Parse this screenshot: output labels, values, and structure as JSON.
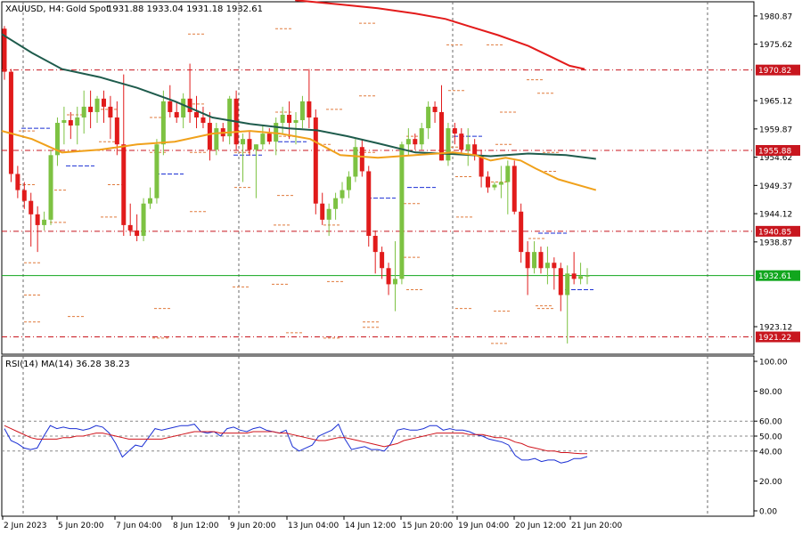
{
  "header": {
    "symbol": "XAUUSD, H4:",
    "description": "Gold Spot",
    "ohlc": "1931.88 1933.04 1931.18 1932.61"
  },
  "rsi_header": "RSI(14) MA(14) 36.28 38.23",
  "colors": {
    "bull": "#7dc242",
    "bear": "#e11b1b",
    "ma_red": "#e31b1b",
    "ma_green": "#1e5b4c",
    "ma_orange": "#f0a11b",
    "level_line": "#c8161e",
    "current_line": "#11a61e",
    "rsi_line": "#1a2fd4",
    "rsi_ma": "#d0141c",
    "pivot_dash": "#e07a3c",
    "pivot_blue": "#1a2fd4"
  },
  "chart_data": [
    {
      "type": "candlestick",
      "title": "XAUUSD, H4: Gold Spot",
      "ylim": [
        1918.0,
        1983.5
      ],
      "price_ticks": [
        "1980.87",
        "1975.62",
        "1965.12",
        "1959.87",
        "1954.62",
        "1949.37",
        "1944.12",
        "1938.87",
        "1923.12"
      ],
      "x_tick_labels": [
        "2 Jun 2023",
        "5 Jun 20:00",
        "7 Jun 04:00",
        "8 Jun 12:00",
        "9 Jun 20:00",
        "13 Jun 04:00",
        "14 Jun 12:00",
        "15 Jun 20:00",
        "19 Jun 04:00",
        "20 Jun 12:00",
        "21 Jun 20:00"
      ],
      "horizontal_levels": [
        {
          "label": "1970.82",
          "value": 1970.82
        },
        {
          "label": "1955.88",
          "value": 1955.88
        },
        {
          "label": "1940.85",
          "value": 1940.85
        },
        {
          "label": "1921.22",
          "value": 1921.22
        }
      ],
      "current_price": {
        "label": "1932.61",
        "value": 1932.61
      },
      "candles": [
        {
          "o": 1978.5,
          "h": 1979.0,
          "l": 1969.0,
          "c": 1970.5
        },
        {
          "o": 1970.5,
          "h": 1971.0,
          "l": 1950.0,
          "c": 1951.5
        },
        {
          "o": 1951.5,
          "h": 1953.0,
          "l": 1947.0,
          "c": 1948.5
        },
        {
          "o": 1948.5,
          "h": 1950.0,
          "l": 1945.0,
          "c": 1946.5
        },
        {
          "o": 1946.5,
          "h": 1948.0,
          "l": 1938.0,
          "c": 1944.0
        },
        {
          "o": 1944.0,
          "h": 1945.5,
          "l": 1937.0,
          "c": 1942.0
        },
        {
          "o": 1942.0,
          "h": 1944.5,
          "l": 1941.0,
          "c": 1943.0
        },
        {
          "o": 1943.0,
          "h": 1956.0,
          "l": 1942.0,
          "c": 1955.0
        },
        {
          "o": 1955.0,
          "h": 1962.0,
          "l": 1953.0,
          "c": 1961.0
        },
        {
          "o": 1961.0,
          "h": 1964.0,
          "l": 1957.0,
          "c": 1961.5
        },
        {
          "o": 1961.5,
          "h": 1963.0,
          "l": 1958.0,
          "c": 1960.5
        },
        {
          "o": 1960.5,
          "h": 1964.0,
          "l": 1957.0,
          "c": 1962.0
        },
        {
          "o": 1962.0,
          "h": 1967.0,
          "l": 1959.0,
          "c": 1964.0
        },
        {
          "o": 1964.0,
          "h": 1967.0,
          "l": 1960.0,
          "c": 1963.0
        },
        {
          "o": 1963.0,
          "h": 1966.0,
          "l": 1961.0,
          "c": 1965.5
        },
        {
          "o": 1965.5,
          "h": 1967.0,
          "l": 1961.0,
          "c": 1964.0
        },
        {
          "o": 1964.0,
          "h": 1966.0,
          "l": 1958.0,
          "c": 1962.0
        },
        {
          "o": 1962.0,
          "h": 1965.0,
          "l": 1955.0,
          "c": 1957.0
        },
        {
          "o": 1957.0,
          "h": 1970.0,
          "l": 1940.0,
          "c": 1942.0
        },
        {
          "o": 1942.0,
          "h": 1946.0,
          "l": 1940.0,
          "c": 1941.0
        },
        {
          "o": 1941.0,
          "h": 1944.0,
          "l": 1939.0,
          "c": 1940.0
        },
        {
          "o": 1940.0,
          "h": 1947.0,
          "l": 1939.0,
          "c": 1946.0
        },
        {
          "o": 1946.0,
          "h": 1949.0,
          "l": 1945.0,
          "c": 1947.0
        },
        {
          "o": 1947.0,
          "h": 1958.0,
          "l": 1946.0,
          "c": 1957.0
        },
        {
          "o": 1957.0,
          "h": 1967.0,
          "l": 1955.0,
          "c": 1965.0
        },
        {
          "o": 1965.0,
          "h": 1968.0,
          "l": 1962.0,
          "c": 1963.0
        },
        {
          "o": 1963.0,
          "h": 1965.0,
          "l": 1961.0,
          "c": 1962.0
        },
        {
          "o": 1962.0,
          "h": 1966.5,
          "l": 1960.0,
          "c": 1965.5
        },
        {
          "o": 1965.5,
          "h": 1972.0,
          "l": 1961.0,
          "c": 1963.0
        },
        {
          "o": 1963.0,
          "h": 1966.0,
          "l": 1960.0,
          "c": 1962.0
        },
        {
          "o": 1962.0,
          "h": 1964.0,
          "l": 1960.0,
          "c": 1961.0
        },
        {
          "o": 1961.0,
          "h": 1963.0,
          "l": 1954.0,
          "c": 1956.0
        },
        {
          "o": 1956.0,
          "h": 1961.0,
          "l": 1955.0,
          "c": 1960.0
        },
        {
          "o": 1960.0,
          "h": 1961.0,
          "l": 1957.5,
          "c": 1958.5
        },
        {
          "o": 1958.5,
          "h": 1966.0,
          "l": 1957.0,
          "c": 1965.5
        },
        {
          "o": 1965.5,
          "h": 1967.0,
          "l": 1956.0,
          "c": 1957.0
        },
        {
          "o": 1957.0,
          "h": 1959.0,
          "l": 1950.0,
          "c": 1958.0
        },
        {
          "o": 1958.0,
          "h": 1959.5,
          "l": 1955.0,
          "c": 1956.0
        },
        {
          "o": 1956.0,
          "h": 1957.0,
          "l": 1947.0,
          "c": 1957.0
        },
        {
          "o": 1957.0,
          "h": 1960.5,
          "l": 1956.0,
          "c": 1959.0
        },
        {
          "o": 1959.0,
          "h": 1960.0,
          "l": 1957.0,
          "c": 1957.5
        },
        {
          "o": 1957.5,
          "h": 1962.0,
          "l": 1955.0,
          "c": 1961.0
        },
        {
          "o": 1961.0,
          "h": 1964.0,
          "l": 1959.0,
          "c": 1962.5
        },
        {
          "o": 1962.5,
          "h": 1965.0,
          "l": 1958.0,
          "c": 1961.0
        },
        {
          "o": 1961.0,
          "h": 1963.0,
          "l": 1957.0,
          "c": 1961.5
        },
        {
          "o": 1961.5,
          "h": 1966.0,
          "l": 1960.0,
          "c": 1965.0
        },
        {
          "o": 1965.0,
          "h": 1971.0,
          "l": 1960.0,
          "c": 1962.0
        },
        {
          "o": 1962.0,
          "h": 1963.5,
          "l": 1944.0,
          "c": 1946.0
        },
        {
          "o": 1946.0,
          "h": 1948.0,
          "l": 1942.0,
          "c": 1943.0
        },
        {
          "o": 1943.0,
          "h": 1946.0,
          "l": 1940.0,
          "c": 1945.0
        },
        {
          "o": 1945.0,
          "h": 1948.0,
          "l": 1943.0,
          "c": 1947.0
        },
        {
          "o": 1947.0,
          "h": 1950.0,
          "l": 1946.0,
          "c": 1948.5
        },
        {
          "o": 1948.5,
          "h": 1952.0,
          "l": 1947.0,
          "c": 1951.0
        },
        {
          "o": 1951.0,
          "h": 1958.0,
          "l": 1950.0,
          "c": 1956.5
        },
        {
          "o": 1956.5,
          "h": 1958.0,
          "l": 1951.0,
          "c": 1952.0
        },
        {
          "o": 1952.0,
          "h": 1953.0,
          "l": 1938.0,
          "c": 1940.0
        },
        {
          "o": 1940.0,
          "h": 1941.0,
          "l": 1933.0,
          "c": 1937.0
        },
        {
          "o": 1937.0,
          "h": 1938.0,
          "l": 1932.0,
          "c": 1934.0
        },
        {
          "o": 1934.0,
          "h": 1935.0,
          "l": 1929.0,
          "c": 1931.0
        },
        {
          "o": 1931.0,
          "h": 1939.0,
          "l": 1926.0,
          "c": 1932.0
        },
        {
          "o": 1932.0,
          "h": 1957.5,
          "l": 1931.0,
          "c": 1957.0
        },
        {
          "o": 1957.0,
          "h": 1960.0,
          "l": 1955.0,
          "c": 1958.0
        },
        {
          "o": 1958.0,
          "h": 1959.0,
          "l": 1956.0,
          "c": 1957.0
        },
        {
          "o": 1957.0,
          "h": 1961.0,
          "l": 1956.0,
          "c": 1960.0
        },
        {
          "o": 1960.0,
          "h": 1965.0,
          "l": 1958.0,
          "c": 1964.0
        },
        {
          "o": 1964.0,
          "h": 1965.0,
          "l": 1961.0,
          "c": 1963.0
        },
        {
          "o": 1963.0,
          "h": 1968.0,
          "l": 1954.0,
          "c": 1954.0
        },
        {
          "o": 1954.0,
          "h": 1961.0,
          "l": 1953.0,
          "c": 1960.0
        },
        {
          "o": 1960.0,
          "h": 1961.0,
          "l": 1957.0,
          "c": 1959.0
        },
        {
          "o": 1959.0,
          "h": 1960.0,
          "l": 1955.0,
          "c": 1956.0
        },
        {
          "o": 1956.0,
          "h": 1960.0,
          "l": 1953.0,
          "c": 1957.0
        },
        {
          "o": 1957.0,
          "h": 1958.0,
          "l": 1954.0,
          "c": 1955.0
        },
        {
          "o": 1955.0,
          "h": 1956.0,
          "l": 1949.0,
          "c": 1951.0
        },
        {
          "o": 1951.0,
          "h": 1952.0,
          "l": 1948.0,
          "c": 1949.0
        },
        {
          "o": 1949.0,
          "h": 1950.0,
          "l": 1948.5,
          "c": 1949.5
        },
        {
          "o": 1949.5,
          "h": 1953.0,
          "l": 1947.0,
          "c": 1950.0
        },
        {
          "o": 1950.0,
          "h": 1954.0,
          "l": 1944.0,
          "c": 1953.0
        },
        {
          "o": 1953.0,
          "h": 1954.0,
          "l": 1944.0,
          "c": 1944.5
        },
        {
          "o": 1944.5,
          "h": 1946.0,
          "l": 1935.0,
          "c": 1937.0
        },
        {
          "o": 1937.0,
          "h": 1939.0,
          "l": 1929.0,
          "c": 1934.0
        },
        {
          "o": 1934.0,
          "h": 1939.0,
          "l": 1933.0,
          "c": 1937.0
        },
        {
          "o": 1937.0,
          "h": 1938.0,
          "l": 1933.0,
          "c": 1934.0
        },
        {
          "o": 1934.0,
          "h": 1938.0,
          "l": 1931.0,
          "c": 1935.0
        },
        {
          "o": 1935.0,
          "h": 1936.0,
          "l": 1930.0,
          "c": 1934.0
        },
        {
          "o": 1934.0,
          "h": 1935.0,
          "l": 1926.0,
          "c": 1929.0
        },
        {
          "o": 1929.0,
          "h": 1934.5,
          "l": 1920.0,
          "c": 1933.0
        },
        {
          "o": 1933.0,
          "h": 1937.0,
          "l": 1931.0,
          "c": 1932.0
        },
        {
          "o": 1932.0,
          "h": 1935.0,
          "l": 1931.0,
          "c": 1932.5
        },
        {
          "o": 1932.5,
          "h": 1934.0,
          "l": 1931.0,
          "c": 1932.6
        }
      ],
      "moving_averages": [
        {
          "color": "ma_red",
          "points": [
            [
              0.39,
              1983.8
            ],
            [
              0.45,
              1983.0
            ],
            [
              0.5,
              1982.3
            ],
            [
              0.55,
              1981.3
            ],
            [
              0.59,
              1980.3
            ],
            [
              0.62,
              1979.0
            ],
            [
              0.66,
              1977.3
            ],
            [
              0.7,
              1975.3
            ],
            [
              0.73,
              1973.3
            ],
            [
              0.755,
              1971.6
            ],
            [
              0.775,
              1971.0
            ]
          ]
        },
        {
          "color": "ma_green",
          "points": [
            [
              0.0,
              1977.5
            ],
            [
              0.04,
              1974.0
            ],
            [
              0.08,
              1971.0
            ],
            [
              0.13,
              1969.5
            ],
            [
              0.18,
              1967.5
            ],
            [
              0.23,
              1965.0
            ],
            [
              0.28,
              1962.0
            ],
            [
              0.33,
              1960.8
            ],
            [
              0.38,
              1960.0
            ],
            [
              0.42,
              1959.6
            ],
            [
              0.46,
              1958.5
            ],
            [
              0.5,
              1957.2
            ],
            [
              0.55,
              1955.5
            ],
            [
              0.6,
              1955.2
            ],
            [
              0.65,
              1954.8
            ],
            [
              0.7,
              1955.3
            ],
            [
              0.75,
              1955.0
            ],
            [
              0.79,
              1954.3
            ]
          ]
        },
        {
          "color": "ma_orange",
          "points": [
            [
              0.0,
              1959.5
            ],
            [
              0.04,
              1958.0
            ],
            [
              0.08,
              1955.5
            ],
            [
              0.13,
              1956.0
            ],
            [
              0.18,
              1957.0
            ],
            [
              0.23,
              1957.5
            ],
            [
              0.28,
              1959.0
            ],
            [
              0.33,
              1959.5
            ],
            [
              0.37,
              1959.0
            ],
            [
              0.41,
              1958.0
            ],
            [
              0.45,
              1955.0
            ],
            [
              0.5,
              1954.5
            ],
            [
              0.55,
              1955.0
            ],
            [
              0.6,
              1955.5
            ],
            [
              0.63,
              1955.0
            ],
            [
              0.65,
              1954.0
            ],
            [
              0.67,
              1954.5
            ],
            [
              0.69,
              1954.0
            ],
            [
              0.71,
              1952.5
            ],
            [
              0.74,
              1950.5
            ],
            [
              0.79,
              1948.5
            ]
          ]
        }
      ]
    },
    {
      "type": "line",
      "title": "RSI(14) MA(14) 36.28 38.23",
      "ylim": [
        0,
        100
      ],
      "y_ticks": [
        "100.00",
        "80.00",
        "60.00",
        "50.00",
        "40.00",
        "20.00",
        "0.00"
      ],
      "levels": [
        60,
        50,
        40
      ],
      "series": [
        {
          "name": "RSI(14)",
          "values": [
            55,
            47,
            45,
            42,
            41,
            42,
            50,
            57,
            55,
            56,
            55,
            55,
            54,
            55,
            57,
            56,
            52,
            45,
            36,
            40,
            44,
            43,
            49,
            55,
            54,
            55,
            56,
            57,
            57,
            58,
            53,
            52,
            53,
            50,
            55,
            56,
            54,
            53,
            55,
            56,
            54,
            53,
            52,
            54,
            43,
            40,
            42,
            44,
            50,
            52,
            54,
            58,
            48,
            41,
            42,
            43,
            41,
            41,
            40,
            45,
            54,
            55,
            54,
            54,
            55,
            57,
            57,
            54,
            55,
            54,
            54,
            53,
            51,
            50,
            48,
            47,
            46,
            44,
            37,
            34,
            34,
            35,
            33,
            34,
            34,
            32,
            33,
            35,
            35,
            36.28
          ]
        },
        {
          "name": "MA(14)",
          "values": [
            57,
            55,
            53,
            51,
            49,
            48,
            48,
            48,
            48,
            49,
            49,
            50,
            50,
            51,
            52,
            52,
            51,
            50,
            49,
            48,
            48,
            48,
            48,
            48,
            48,
            49,
            50,
            51,
            52,
            53,
            53,
            53,
            53,
            52,
            52,
            52,
            52,
            52,
            53,
            53,
            53,
            53,
            52,
            52,
            51,
            50,
            49,
            48,
            47,
            47,
            48,
            49,
            49,
            48,
            47,
            46,
            45,
            44,
            43,
            44,
            45,
            47,
            48,
            49,
            50,
            51,
            52,
            52,
            52,
            52,
            52,
            51,
            51,
            51,
            50,
            49,
            49,
            48,
            46,
            45,
            43,
            42,
            41,
            40,
            40,
            39,
            39,
            38.5,
            38.3,
            38.23
          ]
        }
      ]
    }
  ]
}
